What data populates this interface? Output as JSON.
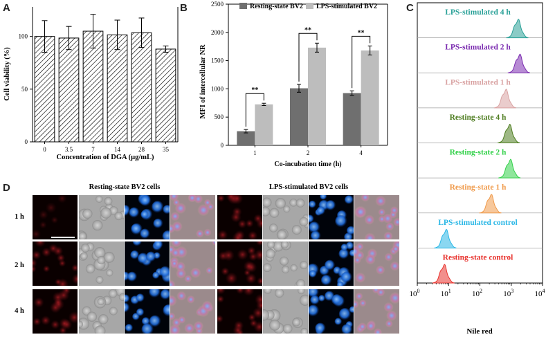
{
  "panels": {
    "a": "A",
    "b": "B",
    "c": "C",
    "d": "D"
  },
  "chart_data": [
    {
      "id": "A",
      "type": "bar",
      "ylabel": "Cell viability (%)",
      "xlabel": "Concentration of DGA (μg/mL)",
      "categories": [
        "0",
        "3.5",
        "7",
        "14",
        "28",
        "35"
      ],
      "values": [
        100,
        98.5,
        105,
        101.5,
        103.5,
        88
      ],
      "errors": [
        15,
        11,
        16,
        14,
        14,
        3
      ],
      "ylim": [
        0,
        128
      ],
      "yticks": [
        "0",
        "50",
        "100"
      ]
    },
    {
      "id": "B",
      "type": "bar",
      "ylabel": "MFI of intercellular NR",
      "xlabel": "Co-incubation time (h)",
      "categories": [
        "1",
        "2",
        "4"
      ],
      "series": [
        {
          "name": "Resting-state BV2",
          "color": "#6f6f6f",
          "values": [
            250,
            1010,
            925
          ],
          "errors": [
            30,
            70,
            40
          ]
        },
        {
          "name": "LPS-stimulated BV2",
          "color": "#bdbdbd",
          "values": [
            725,
            1730,
            1680
          ],
          "errors": [
            20,
            80,
            80
          ]
        }
      ],
      "significance": [
        "**",
        "**",
        "**"
      ],
      "ylim": [
        0,
        2500
      ],
      "yticks": [
        "0",
        "500",
        "1000",
        "1500",
        "2000",
        "2500"
      ]
    },
    {
      "id": "C",
      "type": "histogram-stack",
      "xlabel": "Nile red",
      "x_scale": "log",
      "xlim": [
        1,
        10000
      ],
      "xticks": [
        {
          "base": "10",
          "exp": "0"
        },
        {
          "base": "10",
          "exp": "1"
        },
        {
          "base": "10",
          "exp": "2"
        },
        {
          "base": "10",
          "exp": "3"
        },
        {
          "base": "10",
          "exp": "4"
        }
      ],
      "tracks": [
        {
          "name": "LPS-stimulated 4 h",
          "color": "#2aa198",
          "peak": 1600
        },
        {
          "name": "LPS-stimulated 2 h",
          "color": "#7b2cb0",
          "peak": 1800
        },
        {
          "name": "LPS-stimulated 1 h",
          "color": "#d9a3a3",
          "peak": 650
        },
        {
          "name": "Resting-state 4 h",
          "color": "#4e7d20",
          "peak": 850
        },
        {
          "name": "Resting-state 2 h",
          "color": "#33d14a",
          "peak": 900
        },
        {
          "name": "Resting-state 1 h",
          "color": "#f09a4a",
          "peak": 220
        },
        {
          "name": "LPS-stimulated control",
          "color": "#2ab7e6",
          "peak": 8
        },
        {
          "name": "Resting-state control",
          "color": "#e8332e",
          "peak": 7
        }
      ]
    }
  ],
  "microscopy": {
    "group_left": "Resting-state  BV2 cells",
    "group_right": "LPS-stimulated  BV2 cells",
    "rows": [
      "1 h",
      "2 h",
      "4 h"
    ]
  }
}
